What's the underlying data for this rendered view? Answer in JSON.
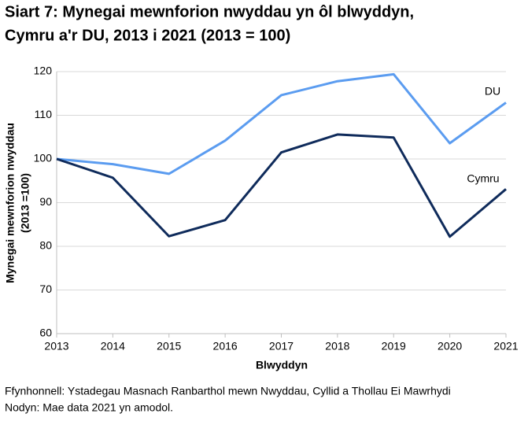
{
  "chart_data": {
    "type": "line",
    "title": [
      "Siart 7: Mynegai mewnforion nwyddau yn ôl blwyddyn,",
      "Cymru a'r DU, 2013 i 2021 (2013 = 100)"
    ],
    "x_label": "Blwyddyn",
    "y_label": [
      "Mynegai mewnforion nwyddau",
      "(2013 =100)"
    ],
    "x": [
      2013,
      2014,
      2015,
      2016,
      2017,
      2018,
      2019,
      2020,
      2021
    ],
    "series": [
      {
        "name": "DU",
        "color": "#5b9cf0",
        "values": [
          100,
          98.8,
          96.6,
          104.2,
          114.6,
          117.8,
          119.4,
          103.6,
          112.9
        ]
      },
      {
        "name": "Cymru",
        "color": "#0f2b5b",
        "values": [
          100,
          95.7,
          82.3,
          86.0,
          101.5,
          105.6,
          104.9,
          82.2,
          93.1
        ]
      }
    ],
    "xlim": [
      2013,
      2021
    ],
    "xticks": [
      2013,
      2014,
      2015,
      2016,
      2017,
      2018,
      2019,
      2020,
      2021
    ],
    "ylim": [
      60,
      120
    ],
    "yticks": [
      60,
      70,
      80,
      90,
      100,
      110,
      120
    ],
    "grid": true,
    "notes": [
      "Ffynhonnell: Ystadegau Masnach Ranbarthol mewn Nwyddau, Cyllid a Thollau Ei Mawrhydi",
      "Nodyn: Mae data 2021 yn amodol."
    ]
  }
}
